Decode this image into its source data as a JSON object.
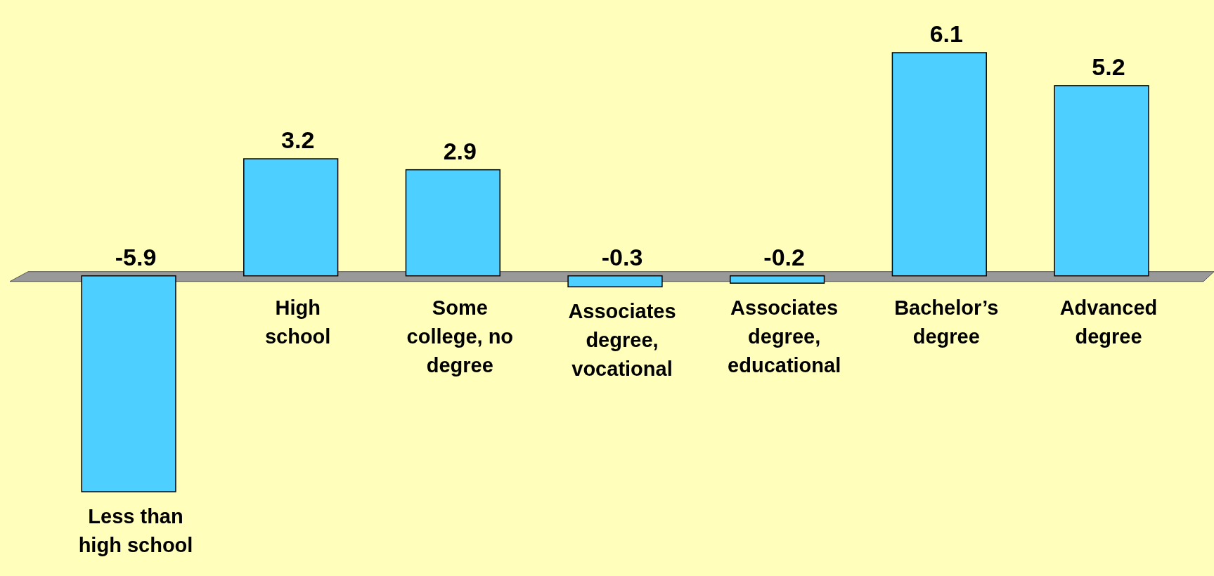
{
  "chart_data": {
    "type": "bar",
    "categories": [
      "Less than\nhigh school",
      "High\nschool",
      "Some\ncollege, no\ndegree",
      "Associates\ndegree,\nvocational",
      "Associates\ndegree,\neducational",
      "Bachelor’s\ndegree",
      "Advanced\ndegree"
    ],
    "values": [
      -5.9,
      3.2,
      2.9,
      -0.3,
      -0.2,
      6.1,
      5.2
    ],
    "color": "#4dcfff",
    "data_labels": true
  }
}
